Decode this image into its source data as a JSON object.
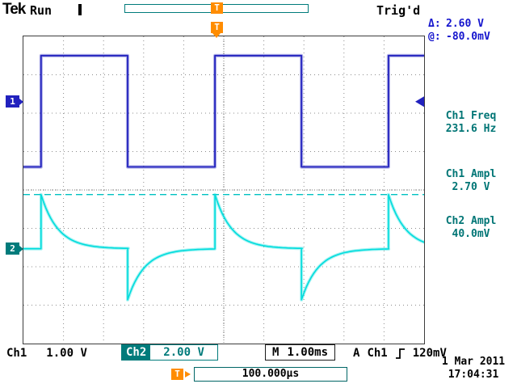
{
  "header": {
    "logo": "Tek",
    "acquisition_state": "Run",
    "trigger_status": "Trig'd"
  },
  "markers": {
    "trigger_label": "T",
    "ch1_label": "1",
    "ch2_label": "2"
  },
  "right_panel": {
    "delta_label": "Δ:",
    "delta_value": "2.60 V",
    "at_label": "@:",
    "at_value": "-80.0mV",
    "measurements": [
      {
        "title": "Ch1 Freq",
        "value": "231.6 Hz"
      },
      {
        "title": "Ch1 Ampl",
        "value": "2.70 V"
      },
      {
        "title": "Ch2 Ampl",
        "value": "40.0mV"
      }
    ]
  },
  "bottom_bar": {
    "ch1_label": "Ch1",
    "ch1_scale": "1.00 V",
    "ch2_label": "Ch2",
    "ch2_scale": "2.00 V",
    "timebase_label": "M",
    "timebase_value": "1.00ms",
    "trigger_system_label": "A",
    "trigger_source": "Ch1",
    "trigger_slope": "rising",
    "trigger_level": "120mV"
  },
  "footer": {
    "trigger_position_value": "100.000µs",
    "date": "1 Mar 2011",
    "time": "17:04:31"
  },
  "colors": {
    "ch1": "#2121be",
    "ch2": "#00dcdc",
    "orange": "#ff8c00",
    "teal": "#007b7b",
    "cursor_blue": "#1414cd",
    "measurement_teal": "#007575"
  },
  "chart_data": {
    "type": "line",
    "title": "Oscilloscope traces: Ch1 square wave, Ch2 RC-differentiated spikes",
    "x_axis": {
      "label": "time",
      "scale_per_div": "1.00ms",
      "divisions": 10
    },
    "y_axis": {
      "divisions": 8
    },
    "grid": "dotted 10x8 divisions with center crosshair",
    "series": [
      {
        "name": "Ch1",
        "shape": "square",
        "scale_per_div": "1.00 V",
        "measured_freq": "231.6 Hz",
        "measured_ampl": "2.70 V",
        "initial_state": "low",
        "edge_positions_div": [
          0.44,
          2.6,
          4.78,
          6.94,
          9.11
        ],
        "high_level_div_from_top": 0.5,
        "low_level_div_from_top": 3.4
      },
      {
        "name": "Ch2",
        "shape": "rc_spikes",
        "scale_per_div": "2.00 V",
        "measured_ampl": "40.0mV",
        "baseline_div_from_top": 5.53,
        "positive_peak_div_from_top": 4.12,
        "negative_peak_div_from_top": 6.86,
        "decay_tau_div": 0.42
      }
    ],
    "cursor_line_div_from_top": 4.12,
    "trigger_level_div_from_top": 1.7,
    "trigger_position_div": 4.84
  }
}
